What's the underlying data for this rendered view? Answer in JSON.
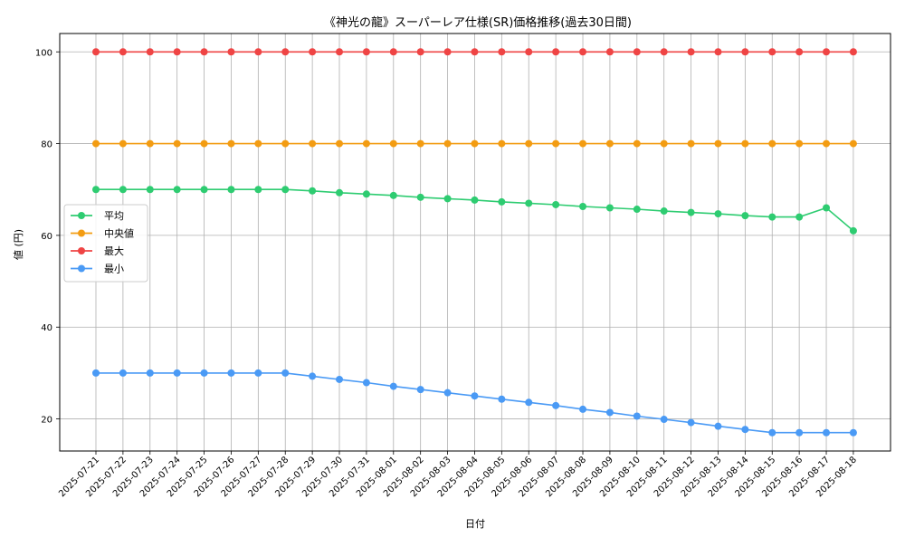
{
  "chart_data": {
    "type": "line",
    "title": "《神光の龍》スーパーレア仕様(SR)価格推移(過去30日間)",
    "xlabel": "日付",
    "ylabel": "値 (円)",
    "ylim": [
      13,
      104
    ],
    "yticks": [
      20,
      40,
      60,
      80,
      100
    ],
    "grid": true,
    "legend_position": "center-left",
    "categories": [
      "2025-07-21",
      "2025-07-22",
      "2025-07-23",
      "2025-07-24",
      "2025-07-25",
      "2025-07-26",
      "2025-07-27",
      "2025-07-28",
      "2025-07-29",
      "2025-07-30",
      "2025-07-31",
      "2025-08-01",
      "2025-08-02",
      "2025-08-03",
      "2025-08-04",
      "2025-08-05",
      "2025-08-06",
      "2025-08-07",
      "2025-08-08",
      "2025-08-09",
      "2025-08-10",
      "2025-08-11",
      "2025-08-12",
      "2025-08-13",
      "2025-08-14",
      "2025-08-15",
      "2025-08-16",
      "2025-08-17",
      "2025-08-18"
    ],
    "series": [
      {
        "name": "平均",
        "color": "#2ecc71",
        "values": [
          70,
          70,
          70,
          70,
          70,
          70,
          70,
          70,
          69.7,
          69.3,
          69,
          68.7,
          68.3,
          68,
          67.7,
          67.3,
          67,
          66.7,
          66.3,
          66,
          65.7,
          65.3,
          65,
          64.7,
          64.3,
          64,
          64,
          66,
          61
        ]
      },
      {
        "name": "中央値",
        "color": "#f39c12",
        "values": [
          80,
          80,
          80,
          80,
          80,
          80,
          80,
          80,
          80,
          80,
          80,
          80,
          80,
          80,
          80,
          80,
          80,
          80,
          80,
          80,
          80,
          80,
          80,
          80,
          80,
          80,
          80,
          80,
          80
        ]
      },
      {
        "name": "最大",
        "color": "#ef4444",
        "values": [
          100,
          100,
          100,
          100,
          100,
          100,
          100,
          100,
          100,
          100,
          100,
          100,
          100,
          100,
          100,
          100,
          100,
          100,
          100,
          100,
          100,
          100,
          100,
          100,
          100,
          100,
          100,
          100,
          100
        ]
      },
      {
        "name": "最小",
        "color": "#4a9af5",
        "values": [
          30,
          30,
          30,
          30,
          30,
          30,
          30,
          30,
          29.3,
          28.6,
          27.9,
          27.1,
          26.4,
          25.7,
          25,
          24.3,
          23.6,
          22.9,
          22.1,
          21.4,
          20.6,
          19.9,
          19.2,
          18.4,
          17.7,
          17,
          17,
          17,
          17
        ]
      }
    ]
  }
}
